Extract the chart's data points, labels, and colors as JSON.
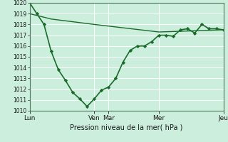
{
  "bg_color": "#cceedd",
  "grid_color": "#ffffff",
  "line_color": "#1a6b2a",
  "marker_color": "#1a6b2a",
  "xlabel": "Pression niveau de la mer( hPa )",
  "ylim": [
    1010,
    1020
  ],
  "yticks": [
    1010,
    1011,
    1012,
    1013,
    1014,
    1015,
    1016,
    1017,
    1018,
    1019,
    1020
  ],
  "xtick_labels": [
    "Lun",
    "Ven",
    "Mar",
    "Mer",
    "Jeu"
  ],
  "xtick_pos": [
    0,
    9,
    11,
    18,
    27
  ],
  "series1_x": [
    0,
    1,
    2,
    3,
    4,
    5,
    6,
    7,
    8,
    9,
    10,
    11,
    12,
    13,
    14,
    15,
    16,
    17,
    18,
    19,
    20,
    21,
    22,
    23,
    24,
    25,
    26,
    27
  ],
  "series1_y": [
    1020.0,
    1019.0,
    1018.0,
    1015.5,
    1013.8,
    1012.8,
    1011.7,
    1011.1,
    1010.4,
    1011.1,
    1011.9,
    1012.2,
    1013.0,
    1014.5,
    1015.6,
    1016.0,
    1016.0,
    1016.4,
    1017.0,
    1017.0,
    1016.9,
    1017.5,
    1017.6,
    1017.2,
    1018.0,
    1017.6,
    1017.6,
    1017.5
  ],
  "series2_x": [
    0,
    3,
    9,
    18,
    27
  ],
  "series2_y": [
    1019.0,
    1018.5,
    1018.0,
    1017.3,
    1017.5
  ]
}
